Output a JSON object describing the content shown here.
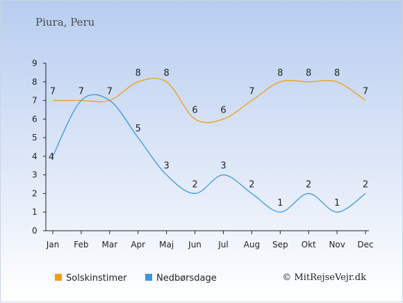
{
  "chart_data": {
    "type": "line",
    "title": "Piura, Peru",
    "categories": [
      "Jan",
      "Feb",
      "Mar",
      "Apr",
      "Maj",
      "Jun",
      "Jul",
      "Aug",
      "Sep",
      "Okt",
      "Nov",
      "Dec"
    ],
    "ylim": [
      0,
      9
    ],
    "yticks": [
      0,
      1,
      2,
      3,
      4,
      5,
      6,
      7,
      8,
      9
    ],
    "grid": false,
    "legend_position": "bottom-left",
    "series": [
      {
        "name": "Solskinstimer",
        "color": "#f39c12",
        "values": [
          7,
          7,
          7,
          8,
          8,
          6,
          6,
          7,
          8,
          8,
          8,
          7
        ]
      },
      {
        "name": "Nedbørsdage",
        "color": "#3b97df",
        "values": [
          4,
          7,
          7,
          5,
          3,
          2,
          3,
          2,
          1,
          2,
          1,
          2
        ]
      }
    ]
  },
  "credit": "© MitRejseVejr.dk"
}
